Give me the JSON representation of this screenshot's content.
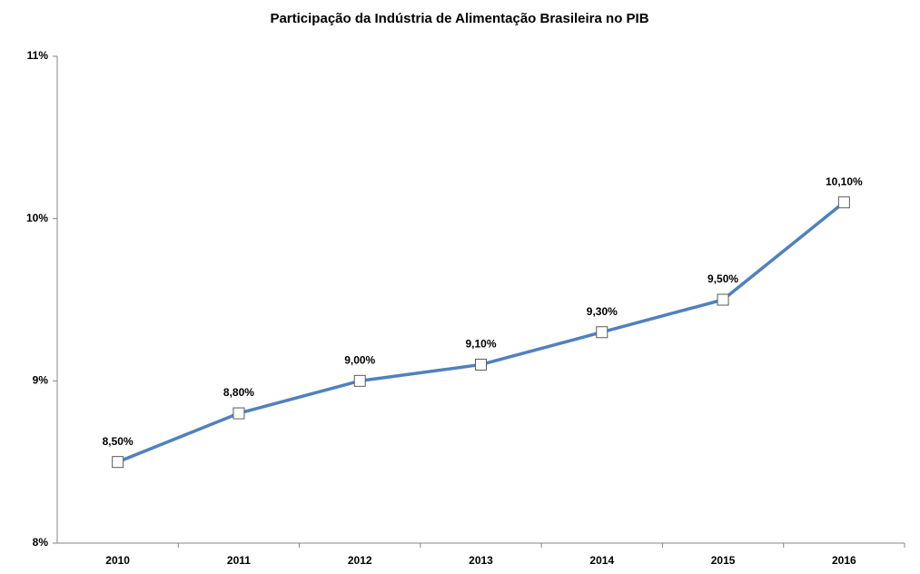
{
  "chart_data": {
    "type": "line",
    "title": "Participação da Indústria de Alimentação Brasileira no PIB",
    "categories": [
      "2010",
      "2011",
      "2012",
      "2013",
      "2014",
      "2015",
      "2016"
    ],
    "values": [
      8.5,
      8.8,
      9.0,
      9.1,
      9.3,
      9.5,
      10.1
    ],
    "value_labels": [
      "8,50%",
      "8,80%",
      "9,00%",
      "9,10%",
      "9,30%",
      "9,50%",
      "10,10%"
    ],
    "color": "#4f81bd",
    "ylim": [
      8,
      11
    ],
    "yticks": [
      {
        "value": 8,
        "label": "8%"
      },
      {
        "value": 9,
        "label": "9%"
      },
      {
        "value": 10,
        "label": "10%"
      },
      {
        "value": 11,
        "label": "11%"
      }
    ],
    "grid": false
  }
}
